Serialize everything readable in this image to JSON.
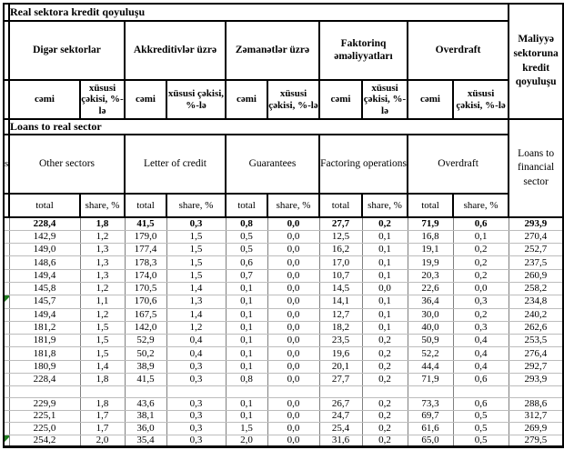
{
  "colors": {
    "background": "#ffffff",
    "border_black": "#000000",
    "grid_vertical": "#7f7f7f",
    "grid_horizontal": "#bcbcbc",
    "marker_green": "#1e7b1e"
  },
  "header_az": {
    "title": "Real sektora kredit qoyuluşu",
    "groups": [
      "Digər sektorlar",
      "Akkreditivlər üzrə",
      "Zəmanətlər üzrə",
      "Faktorinq əməliyyatları",
      "Overdraft"
    ],
    "financial": "Maliyyə sektoruna kredit qoyuluşu",
    "total_label": "cəmi",
    "share_label": "xüsusi çəkisi, %-lə"
  },
  "header_en": {
    "title": "Loans to real sector",
    "groups": [
      "Other sectors",
      "Letter of credit",
      "Guarantees",
      "Factoring operations",
      "Overdraft"
    ],
    "financial": "Loans to financial sector",
    "total_label": "total",
    "share_label": "share, %",
    "left_fragment": "s"
  },
  "body": {
    "block1": {
      "bold_rows": [
        0
      ],
      "marker_rows": [
        6
      ],
      "rows": [
        [
          "228,4",
          "1,8",
          "41,5",
          "0,3",
          "0,8",
          "0,0",
          "27,7",
          "0,2",
          "71,9",
          "0,6",
          "293,9"
        ],
        [
          "142,9",
          "1,2",
          "179,0",
          "1,5",
          "0,5",
          "0,0",
          "12,5",
          "0,1",
          "16,8",
          "0,1",
          "270,4"
        ],
        [
          "149,0",
          "1,3",
          "177,4",
          "1,5",
          "0,5",
          "0,0",
          "16,2",
          "0,1",
          "19,1",
          "0,2",
          "252,7"
        ],
        [
          "148,6",
          "1,3",
          "178,3",
          "1,5",
          "0,6",
          "0,0",
          "17,0",
          "0,1",
          "19,9",
          "0,2",
          "237,5"
        ],
        [
          "149,4",
          "1,3",
          "174,0",
          "1,5",
          "0,7",
          "0,0",
          "10,7",
          "0,1",
          "20,3",
          "0,2",
          "260,9"
        ],
        [
          "145,8",
          "1,2",
          "170,5",
          "1,4",
          "0,1",
          "0,0",
          "14,5",
          "0,0",
          "22,6",
          "0,0",
          "258,2"
        ],
        [
          "145,7",
          "1,1",
          "170,6",
          "1,3",
          "0,1",
          "0,0",
          "14,1",
          "0,1",
          "36,4",
          "0,3",
          "234,8"
        ],
        [
          "149,4",
          "1,2",
          "167,5",
          "1,4",
          "0,1",
          "0,0",
          "12,7",
          "0,1",
          "30,0",
          "0,2",
          "240,2"
        ],
        [
          "181,2",
          "1,5",
          "142,0",
          "1,2",
          "0,1",
          "0,0",
          "18,2",
          "0,1",
          "40,0",
          "0,3",
          "262,6"
        ],
        [
          "181,9",
          "1,5",
          "52,9",
          "0,4",
          "0,1",
          "0,0",
          "23,5",
          "0,2",
          "50,9",
          "0,4",
          "253,5"
        ],
        [
          "181,8",
          "1,5",
          "50,2",
          "0,4",
          "0,1",
          "0,0",
          "19,6",
          "0,2",
          "52,2",
          "0,4",
          "276,4"
        ],
        [
          "180,9",
          "1,4",
          "38,9",
          "0,3",
          "0,1",
          "0,0",
          "20,1",
          "0,2",
          "44,4",
          "0,4",
          "292,7"
        ],
        [
          "228,4",
          "1,8",
          "41,5",
          "0,3",
          "0,8",
          "0,0",
          "27,7",
          "0,2",
          "71,9",
          "0,6",
          "293,9"
        ]
      ]
    },
    "block2": {
      "bold_rows": [],
      "marker_rows": [
        3
      ],
      "rows": [
        [
          "229,9",
          "1,8",
          "43,6",
          "0,3",
          "0,1",
          "0,0",
          "26,7",
          "0,2",
          "73,3",
          "0,6",
          "288,6"
        ],
        [
          "225,1",
          "1,7",
          "38,1",
          "0,3",
          "0,1",
          "0,0",
          "24,7",
          "0,2",
          "69,7",
          "0,5",
          "312,7"
        ],
        [
          "225,0",
          "1,7",
          "36,0",
          "0,3",
          "1,5",
          "0,0",
          "25,4",
          "0,2",
          "61,6",
          "0,5",
          "269,9"
        ],
        [
          "254,2",
          "2,0",
          "35,4",
          "0,3",
          "2,0",
          "0,0",
          "31,6",
          "0,2",
          "65,0",
          "0,5",
          "279,5"
        ]
      ]
    }
  }
}
